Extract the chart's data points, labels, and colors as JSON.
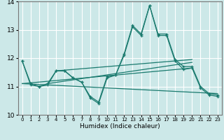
{
  "xlabel": "Humidex (Indice chaleur)",
  "bg_color": "#cce8e8",
  "grid_color": "#ffffff",
  "line_color": "#1a7a6e",
  "xlim": [
    -0.5,
    23.5
  ],
  "ylim": [
    10,
    14
  ],
  "yticks": [
    10,
    11,
    12,
    13,
    14
  ],
  "xticks": [
    0,
    1,
    2,
    3,
    4,
    5,
    6,
    7,
    8,
    9,
    10,
    11,
    12,
    13,
    14,
    15,
    16,
    17,
    18,
    19,
    20,
    21,
    22,
    23
  ],
  "curve1_x": [
    0,
    1,
    2,
    3,
    4,
    5,
    6,
    7,
    8,
    9,
    10,
    11,
    12,
    13,
    14,
    15,
    16,
    17,
    18,
    19,
    20,
    21,
    22,
    23
  ],
  "curve1_y": [
    11.9,
    11.1,
    11.0,
    11.1,
    11.55,
    11.55,
    11.3,
    11.15,
    10.65,
    10.45,
    11.35,
    11.4,
    12.15,
    13.15,
    12.85,
    13.85,
    12.85,
    12.85,
    11.95,
    11.7,
    11.7,
    11.0,
    10.75,
    10.7
  ],
  "curve2_x": [
    0,
    1,
    2,
    3,
    4,
    5,
    6,
    7,
    8,
    9,
    10,
    11,
    12,
    13,
    14,
    15,
    16,
    17,
    18,
    19,
    20,
    21,
    22,
    23
  ],
  "curve2_y": [
    11.9,
    11.05,
    11.0,
    11.05,
    11.55,
    11.55,
    11.3,
    11.15,
    10.6,
    10.4,
    11.3,
    11.4,
    12.1,
    13.1,
    12.8,
    13.85,
    12.8,
    12.8,
    11.9,
    11.6,
    11.65,
    10.95,
    10.7,
    10.65
  ],
  "trend1_x": [
    0,
    23
  ],
  "trend1_y": [
    11.1,
    10.75
  ],
  "trend2_x": [
    0,
    20
  ],
  "trend2_y": [
    11.1,
    11.65
  ],
  "trend3_x": [
    3,
    20
  ],
  "trend3_y": [
    11.1,
    11.85
  ],
  "trend4_x": [
    4,
    20
  ],
  "trend4_y": [
    11.55,
    11.95
  ]
}
